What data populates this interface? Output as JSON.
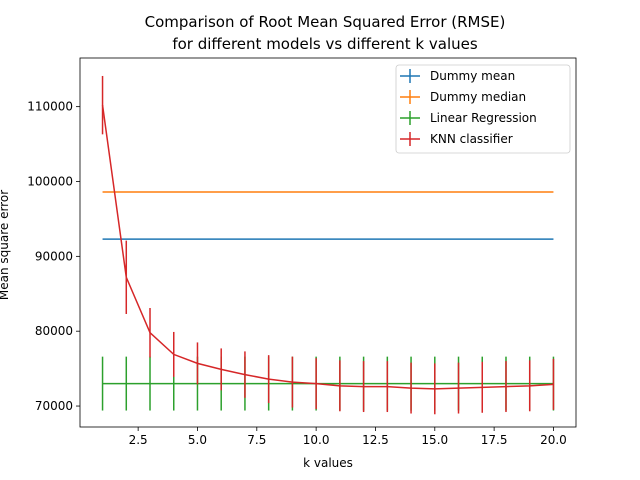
{
  "chart_data": {
    "type": "line",
    "title_lines": [
      "Comparison of Root Mean Squared Error (RMSE)",
      "for different models vs different k values"
    ],
    "xlabel": "k values",
    "ylabel": "Mean square error",
    "xlim": [
      0.05,
      20.95
    ],
    "ylim": [
      67200,
      116500
    ],
    "xticks": [
      2.5,
      5.0,
      7.5,
      10.0,
      12.5,
      15.0,
      17.5,
      20.0
    ],
    "xtick_labels": [
      "2.5",
      "5.0",
      "7.5",
      "10.0",
      "12.5",
      "15.0",
      "17.5",
      "20.0"
    ],
    "yticks": [
      70000,
      80000,
      90000,
      100000,
      110000
    ],
    "ytick_labels": [
      "70000",
      "80000",
      "90000",
      "100000",
      "110000"
    ],
    "legend_position": "top-right",
    "x": [
      1,
      2,
      3,
      4,
      5,
      6,
      7,
      8,
      9,
      10,
      11,
      12,
      13,
      14,
      15,
      16,
      17,
      18,
      19,
      20
    ],
    "series": [
      {
        "name": "Dummy mean",
        "color": "#1f77b4",
        "values": [
          92300,
          92300,
          92300,
          92300,
          92300,
          92300,
          92300,
          92300,
          92300,
          92300,
          92300,
          92300,
          92300,
          92300,
          92300,
          92300,
          92300,
          92300,
          92300,
          92300
        ],
        "errors": [
          0,
          0,
          0,
          0,
          0,
          0,
          0,
          0,
          0,
          0,
          0,
          0,
          0,
          0,
          0,
          0,
          0,
          0,
          0,
          0
        ]
      },
      {
        "name": "Dummy median",
        "color": "#ff7f0e",
        "values": [
          98600,
          98600,
          98600,
          98600,
          98600,
          98600,
          98600,
          98600,
          98600,
          98600,
          98600,
          98600,
          98600,
          98600,
          98600,
          98600,
          98600,
          98600,
          98600,
          98600
        ],
        "errors": [
          0,
          0,
          0,
          0,
          0,
          0,
          0,
          0,
          0,
          0,
          0,
          0,
          0,
          0,
          0,
          0,
          0,
          0,
          0,
          0
        ]
      },
      {
        "name": "Linear Regression",
        "color": "#2ca02c",
        "values": [
          73000,
          73000,
          73000,
          73000,
          73000,
          73000,
          73000,
          73000,
          73000,
          73000,
          73000,
          73000,
          73000,
          73000,
          73000,
          73000,
          73000,
          73000,
          73000,
          73000
        ],
        "errors": [
          3600,
          3600,
          3600,
          3600,
          3600,
          3600,
          3600,
          3600,
          3600,
          3600,
          3600,
          3600,
          3600,
          3600,
          3600,
          3600,
          3600,
          3600,
          3600,
          3600
        ]
      },
      {
        "name": "KNN classifier",
        "color": "#d62728",
        "values": [
          110200,
          87200,
          79800,
          76900,
          75700,
          74900,
          74200,
          73600,
          73200,
          73000,
          72700,
          72600,
          72600,
          72400,
          72300,
          72400,
          72500,
          72600,
          72700,
          72900
        ],
        "errors": [
          3900,
          4900,
          3300,
          3000,
          2800,
          2800,
          3100,
          3200,
          3400,
          3400,
          3400,
          3400,
          3400,
          3400,
          3400,
          3400,
          3400,
          3400,
          3400,
          3400
        ]
      }
    ]
  }
}
